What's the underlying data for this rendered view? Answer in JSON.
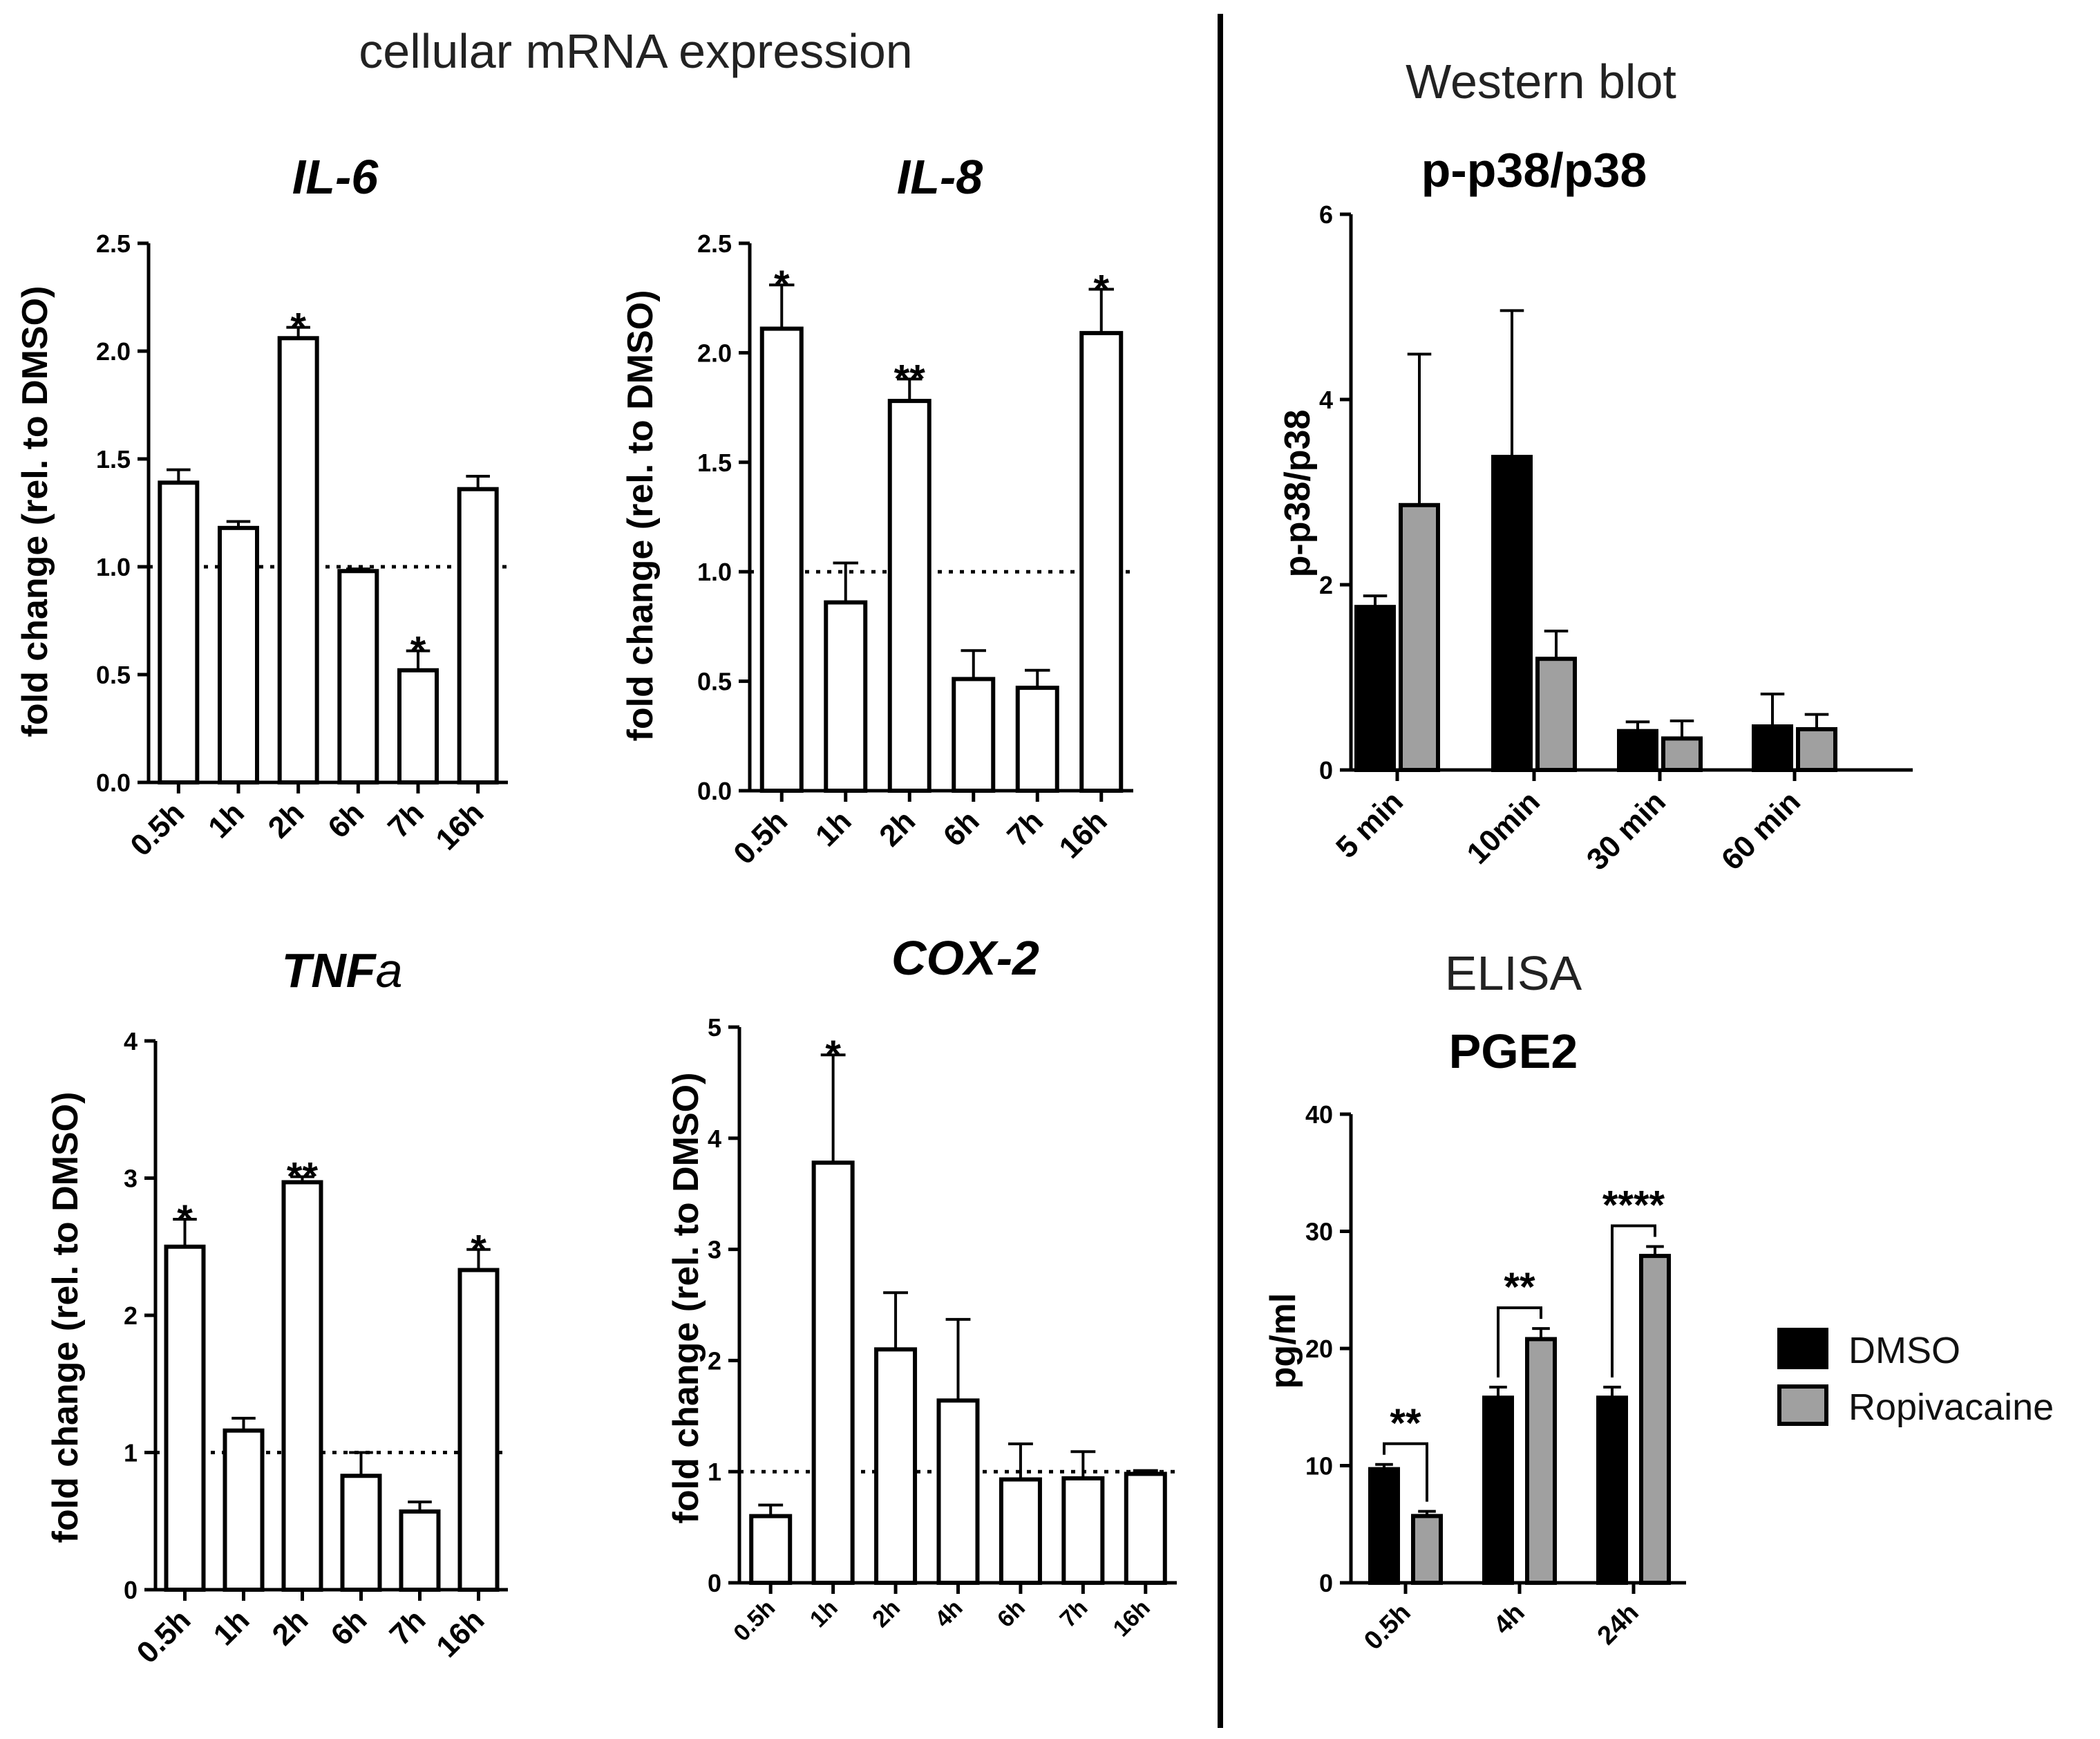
{
  "figure": {
    "left_section_title": "cellular mRNA expression",
    "western_title": "Western blot",
    "elisa_title": "ELISA"
  },
  "legend": {
    "items": [
      {
        "label": "DMSO",
        "color": "#000000"
      },
      {
        "label": "Ropivacaine",
        "color": "#a0a0a0"
      }
    ]
  },
  "colors": {
    "open_bar": "#ffffff",
    "dmso": "#000000",
    "ropivacaine": "#a0a0a0"
  },
  "chart_data": [
    {
      "id": "il6",
      "type": "bar",
      "title": "IL-6",
      "categories": [
        "0.5h",
        "1h",
        "2h",
        "6h",
        "7h",
        "16h"
      ],
      "values": [
        1.39,
        1.18,
        2.06,
        0.98,
        0.52,
        1.36
      ],
      "errors": [
        0.06,
        0.03,
        0.05,
        0.01,
        0.09,
        0.06
      ],
      "significance": [
        "",
        "",
        "*",
        "",
        "*",
        ""
      ],
      "ylabel": "fold change (rel. to DMSO)",
      "ylim": [
        0,
        2.5
      ],
      "yticks": [
        0.0,
        0.5,
        1.0,
        1.5,
        2.0,
        2.5
      ],
      "ytick_labels": [
        "0.0",
        "0.5",
        "1.0",
        "1.5",
        "2.0",
        "2.5"
      ],
      "reference_line": 1.0
    },
    {
      "id": "il8",
      "type": "bar",
      "title": "IL-8",
      "categories": [
        "0.5h",
        "1h",
        "2h",
        "6h",
        "7h",
        "16h"
      ],
      "values": [
        2.11,
        0.86,
        1.78,
        0.51,
        0.47,
        2.09
      ],
      "errors": [
        0.2,
        0.18,
        0.1,
        0.13,
        0.08,
        0.2
      ],
      "significance": [
        "*",
        "",
        "**",
        "",
        "",
        "*"
      ],
      "ylabel": "fold change (rel. to DMSO)",
      "ylim": [
        0,
        2.5
      ],
      "yticks": [
        0.0,
        0.5,
        1.0,
        1.5,
        2.0,
        2.5
      ],
      "ytick_labels": [
        "0.0",
        "0.5",
        "1.0",
        "1.5",
        "2.0",
        "2.5"
      ],
      "reference_line": 1.0
    },
    {
      "id": "tnfa",
      "type": "bar",
      "title_main": "TNF",
      "title_suffix": "a",
      "categories": [
        "0.5h",
        "1h",
        "2h",
        "6h",
        "7h",
        "16h"
      ],
      "values": [
        2.5,
        1.16,
        2.97,
        0.83,
        0.57,
        2.33
      ],
      "errors": [
        0.2,
        0.09,
        0.04,
        0.17,
        0.07,
        0.15
      ],
      "significance": [
        "*",
        "",
        "**",
        "",
        "",
        "*"
      ],
      "ylabel": "fold change (rel. to DMSO)",
      "ylim": [
        0,
        4
      ],
      "yticks": [
        0,
        1,
        2,
        3,
        4
      ],
      "ytick_labels": [
        "0",
        "1",
        "2",
        "3",
        "4"
      ],
      "reference_line": 1.0
    },
    {
      "id": "cox2",
      "type": "bar",
      "title": "COX-2",
      "categories": [
        "0.5h",
        "1h",
        "2h",
        "4h",
        "6h",
        "7h",
        "16h"
      ],
      "values": [
        0.6,
        3.78,
        2.1,
        1.64,
        0.93,
        0.94,
        0.98
      ],
      "errors": [
        0.1,
        0.97,
        0.51,
        0.73,
        0.32,
        0.24,
        0.03
      ],
      "significance": [
        "",
        "*",
        "",
        "",
        "",
        "",
        ""
      ],
      "ylabel": "fold change (rel. to DMSO)",
      "ylim": [
        0,
        5
      ],
      "yticks": [
        0,
        1,
        2,
        3,
        4,
        5
      ],
      "ytick_labels": [
        "0",
        "1",
        "2",
        "3",
        "4",
        "5"
      ],
      "reference_line": 1.0
    },
    {
      "id": "pp38",
      "type": "bar",
      "title": "p-p38/p38",
      "categories": [
        "5 min",
        "10min",
        "30 min",
        "60 min"
      ],
      "series": [
        {
          "name": "DMSO",
          "values": [
            1.76,
            3.38,
            0.42,
            0.47
          ],
          "errors": [
            0.12,
            1.58,
            0.1,
            0.35
          ]
        },
        {
          "name": "Ropivacaine",
          "values": [
            2.86,
            1.2,
            0.34,
            0.44
          ],
          "errors": [
            1.63,
            0.3,
            0.19,
            0.16
          ]
        }
      ],
      "ylabel": "p-p38/p38",
      "ylim": [
        0,
        6
      ],
      "yticks": [
        0,
        2,
        4,
        6
      ],
      "ytick_labels": [
        "0",
        "2",
        "4",
        "6"
      ]
    },
    {
      "id": "pge2",
      "type": "bar",
      "title": "PGE2",
      "categories": [
        "0.5h",
        "4h",
        "24h"
      ],
      "series": [
        {
          "name": "DMSO",
          "values": [
            9.7,
            15.8,
            15.8
          ],
          "errors": [
            0.4,
            0.9,
            0.9
          ]
        },
        {
          "name": "Ropivacaine",
          "values": [
            5.7,
            20.8,
            27.9
          ],
          "errors": [
            0.4,
            0.9,
            0.8
          ]
        }
      ],
      "brackets": [
        "**",
        "**",
        "****"
      ],
      "ylabel": "pg/ml",
      "ylim": [
        0,
        40
      ],
      "yticks": [
        0,
        10,
        20,
        30,
        40
      ],
      "ytick_labels": [
        "0",
        "10",
        "20",
        "30",
        "40"
      ]
    }
  ]
}
